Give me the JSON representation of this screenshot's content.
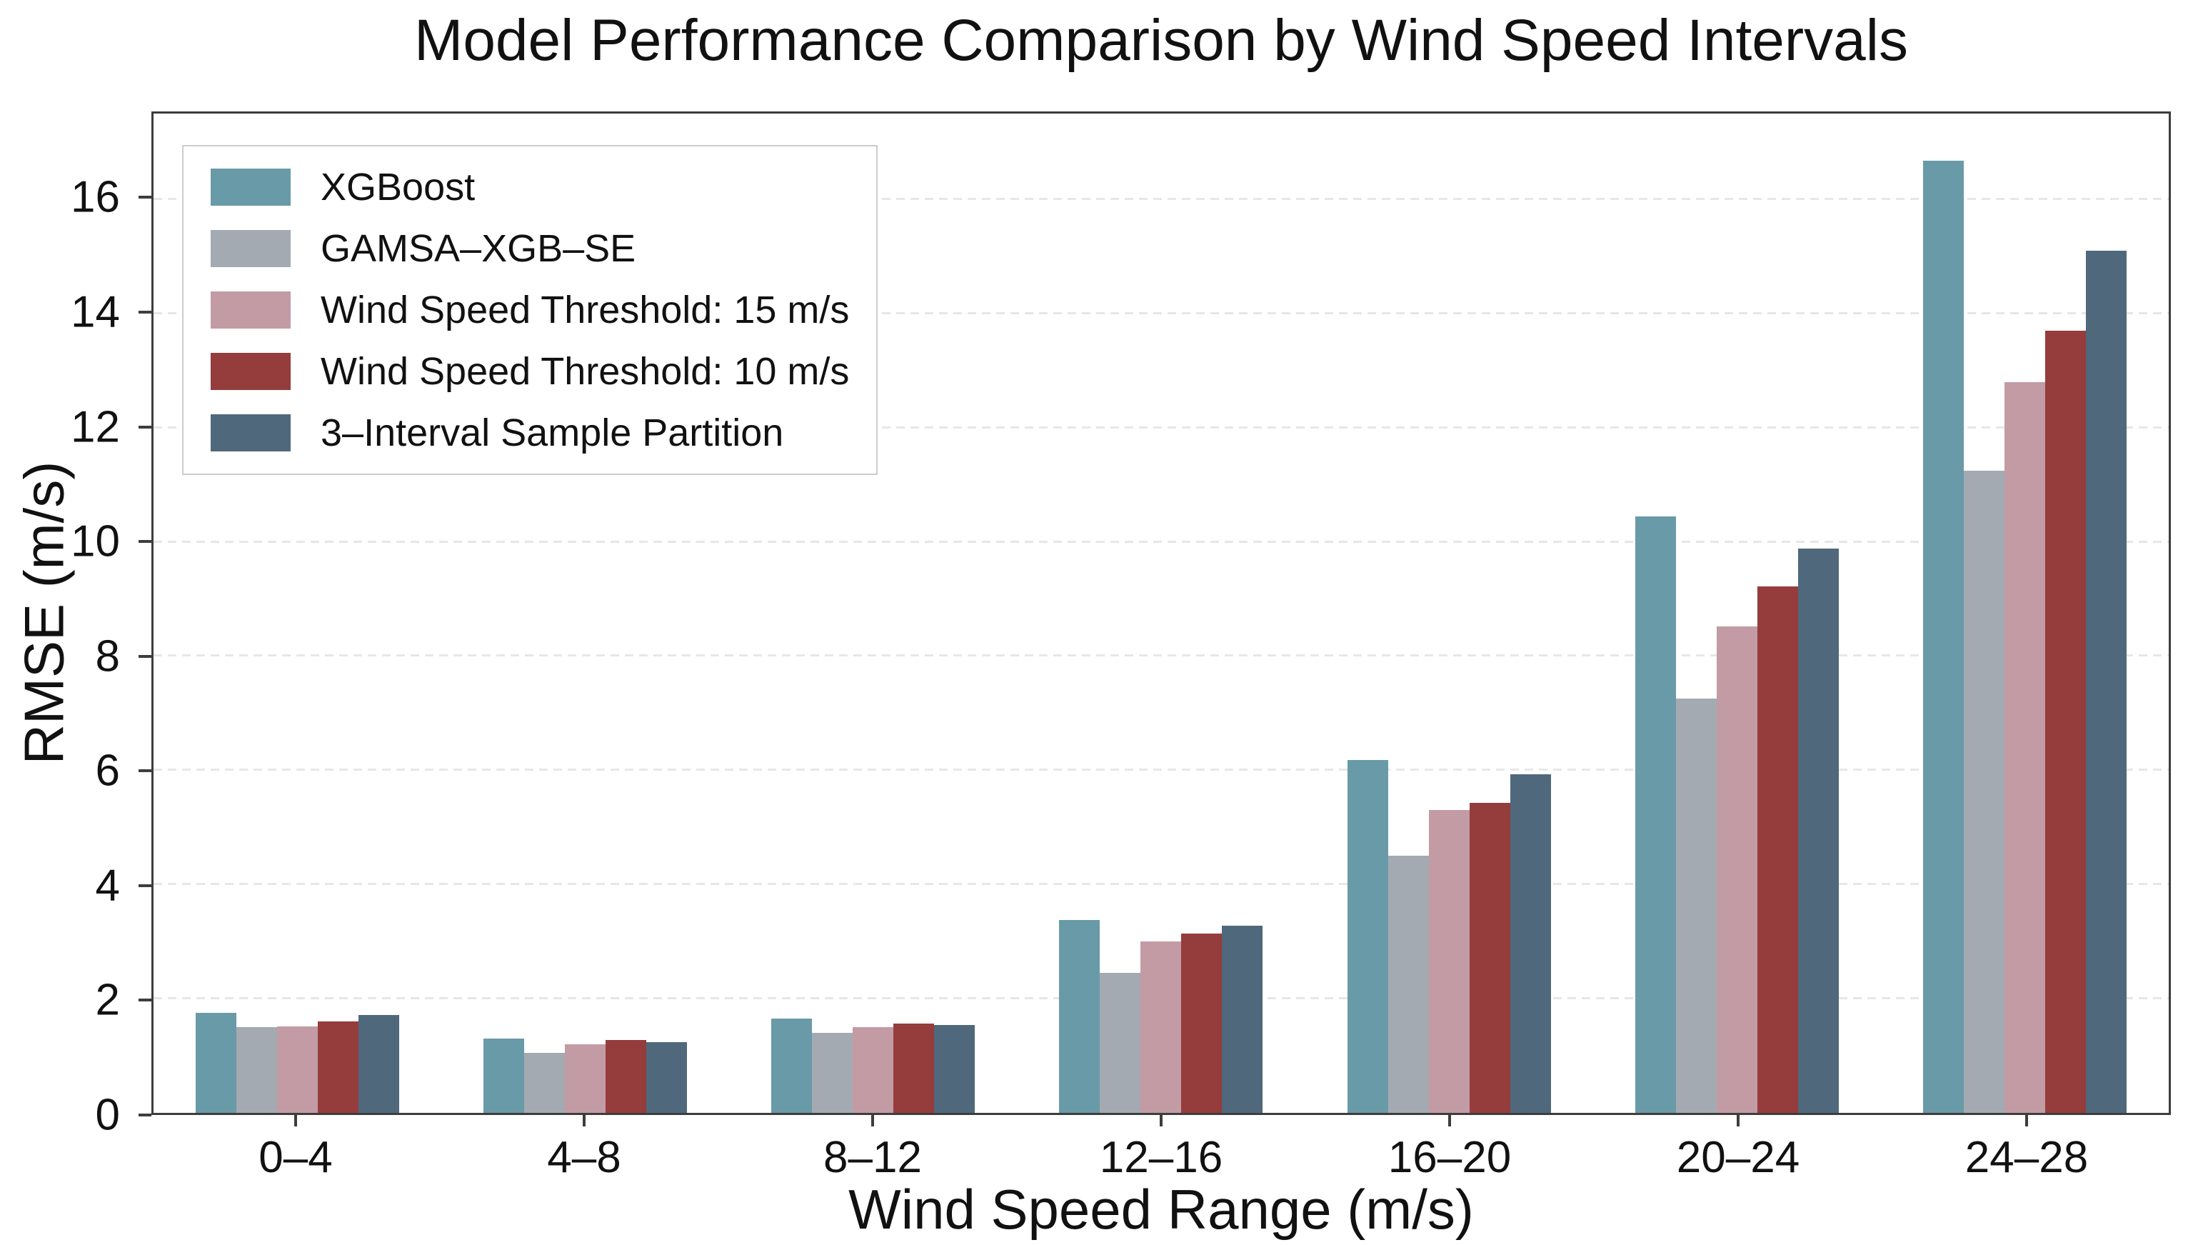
{
  "chart_data": {
    "type": "bar",
    "title": "Model Performance Comparison by Wind Speed Intervals",
    "xlabel": "Wind Speed Range (m/s)",
    "ylabel": "RMSE (m/s)",
    "categories": [
      "0–4",
      "4–8",
      "8–12",
      "12–16",
      "16–20",
      "20–24",
      "24–28"
    ],
    "series": [
      {
        "name": "XGBoost",
        "color": "#699aa8",
        "values": [
          1.75,
          1.3,
          1.65,
          3.38,
          6.18,
          10.45,
          16.68
        ]
      },
      {
        "name": "GAMSA–XGB–SE",
        "color": "#a4aab2",
        "values": [
          1.5,
          1.05,
          1.4,
          2.45,
          4.5,
          7.25,
          11.25
        ]
      },
      {
        "name": "Wind Speed Threshold: 15 m/s",
        "color": "#c39ba4",
        "values": [
          1.52,
          1.2,
          1.5,
          3.0,
          5.3,
          8.52,
          12.8
        ]
      },
      {
        "name": "Wind Speed Threshold: 10 m/s",
        "color": "#953c3c",
        "values": [
          1.6,
          1.28,
          1.56,
          3.14,
          5.43,
          9.22,
          13.7
        ]
      },
      {
        "name": "3–Interval Sample Partition",
        "color": "#50687b",
        "values": [
          1.72,
          1.24,
          1.54,
          3.28,
          5.93,
          9.88,
          15.1
        ]
      }
    ],
    "ylim": [
      0,
      17.5
    ],
    "yticks": [
      0,
      2,
      4,
      6,
      8,
      10,
      12,
      14,
      16
    ],
    "grid": "horizontal-dashed",
    "legend_position": "upper-left",
    "colors": {
      "spine": "#3d3d3d",
      "gridline": "#e7e7e7",
      "background": "#ffffff",
      "text": "#111111"
    }
  }
}
